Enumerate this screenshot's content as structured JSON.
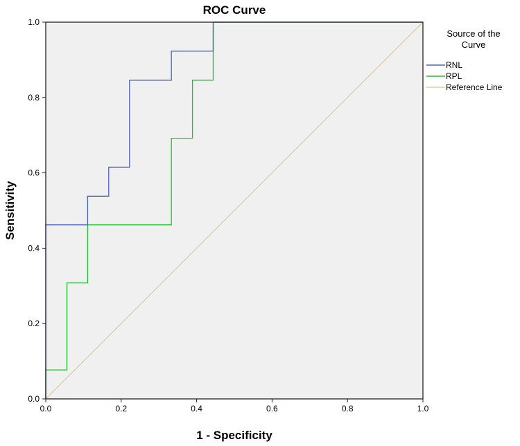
{
  "chart_data": {
    "type": "line",
    "title": "ROC Curve",
    "xlabel": "1 - Specificity",
    "ylabel": "Sensitivity",
    "xlim": [
      0,
      1
    ],
    "ylim": [
      0,
      1
    ],
    "xticks": [
      "0.0",
      "0.2",
      "0.4",
      "0.6",
      "0.8",
      "1.0"
    ],
    "yticks": [
      "0.0",
      "0.2",
      "0.4",
      "0.6",
      "0.8",
      "1.0"
    ],
    "grid": false,
    "legend": {
      "title": [
        "Source of the",
        "Curve"
      ],
      "position": "right"
    },
    "series": [
      {
        "name": "RNL",
        "color": "#4a62c6",
        "step": true,
        "x": [
          0,
          0,
          0.111,
          0.111,
          0.167,
          0.167,
          0.222,
          0.222,
          0.333,
          0.333,
          0.444,
          0.444,
          1.0
        ],
        "y": [
          0,
          0.462,
          0.462,
          0.538,
          0.538,
          0.615,
          0.615,
          0.846,
          0.846,
          0.923,
          0.923,
          1.0,
          1.0
        ]
      },
      {
        "name": "RPL",
        "color": "#22c22e",
        "step": true,
        "x": [
          0,
          0,
          0.056,
          0.056,
          0.111,
          0.111,
          0.333,
          0.333,
          0.389,
          0.389,
          0.444,
          0.444,
          1.0
        ],
        "y": [
          0,
          0.077,
          0.077,
          0.308,
          0.308,
          0.462,
          0.462,
          0.692,
          0.692,
          0.846,
          0.846,
          1.0,
          1.0
        ]
      },
      {
        "name": "Reference Line",
        "color": "#d8d0a0",
        "step": false,
        "x": [
          0,
          1
        ],
        "y": [
          0,
          1
        ]
      }
    ]
  }
}
